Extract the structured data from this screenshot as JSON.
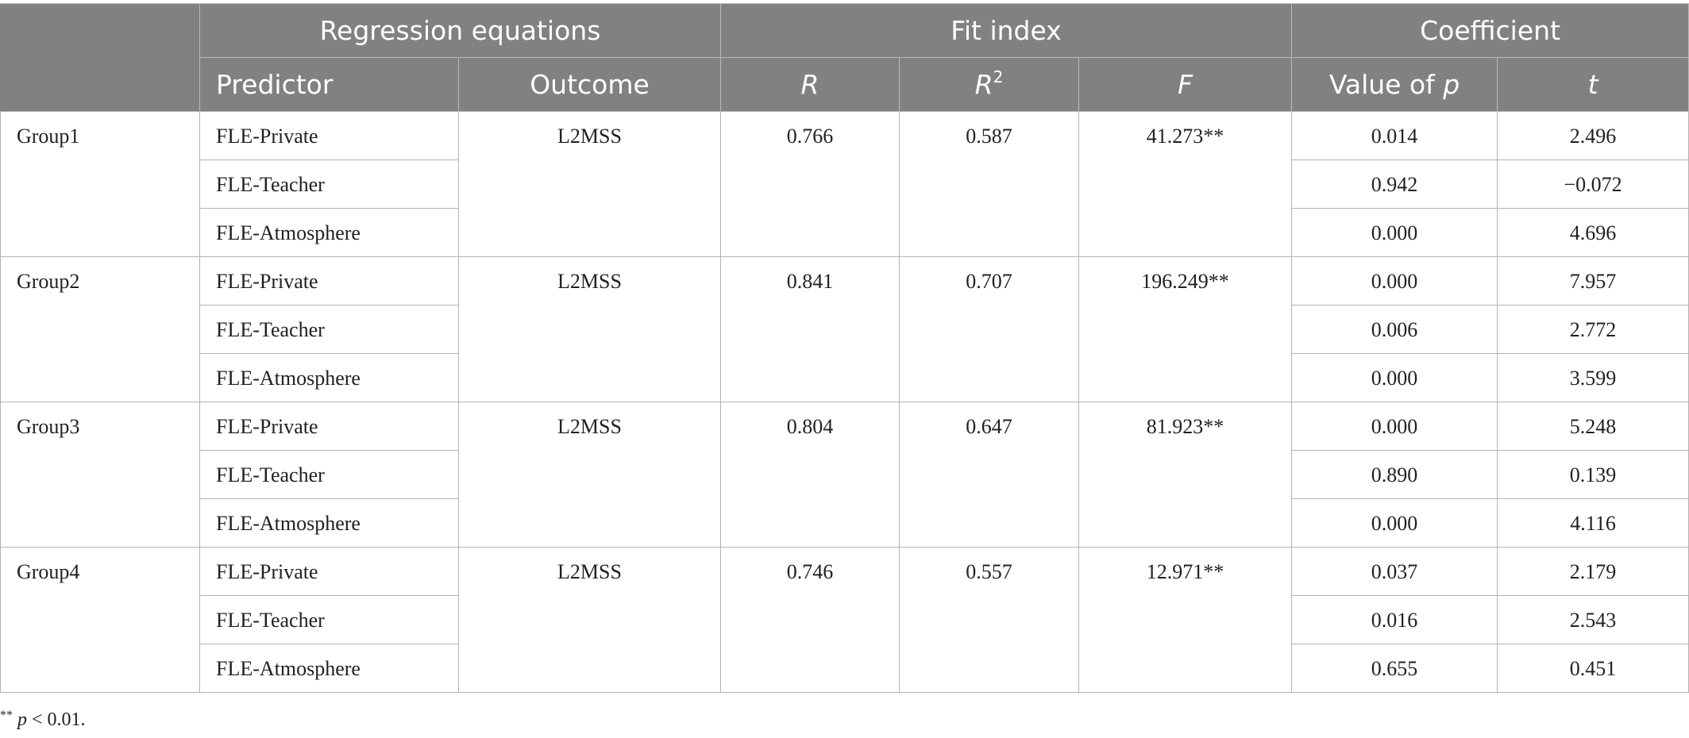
{
  "header": {
    "group_row": {
      "regression_equations": "Regression equations",
      "fit_index": "Fit index",
      "coefficient": "Coefficient"
    },
    "columns": {
      "predictor": "Predictor",
      "outcome": "Outcome",
      "r": "R",
      "r2_base": "R",
      "r2_sup": "2",
      "f": "F",
      "value_of_p_text": "Value of ",
      "value_of_p_var": "p",
      "t": "t"
    }
  },
  "groups": [
    {
      "name": "Group1",
      "outcome": "L2MSS",
      "r": "0.766",
      "r2": "0.587",
      "f": "41.273**",
      "rows": [
        {
          "predictor": "FLE-Private",
          "p": "0.014",
          "t": "2.496"
        },
        {
          "predictor": "FLE-Teacher",
          "p": "0.942",
          "t": "−0.072"
        },
        {
          "predictor": "FLE-Atmosphere",
          "p": "0.000",
          "t": "4.696"
        }
      ]
    },
    {
      "name": "Group2",
      "outcome": "L2MSS",
      "r": "0.841",
      "r2": "0.707",
      "f": "196.249**",
      "rows": [
        {
          "predictor": "FLE-Private",
          "p": "0.000",
          "t": "7.957"
        },
        {
          "predictor": "FLE-Teacher",
          "p": "0.006",
          "t": "2.772"
        },
        {
          "predictor": "FLE-Atmosphere",
          "p": "0.000",
          "t": "3.599"
        }
      ]
    },
    {
      "name": "Group3",
      "outcome": "L2MSS",
      "r": "0.804",
      "r2": "0.647",
      "f": "81.923**",
      "rows": [
        {
          "predictor": "FLE-Private",
          "p": "0.000",
          "t": "5.248"
        },
        {
          "predictor": "FLE-Teacher",
          "p": "0.890",
          "t": "0.139"
        },
        {
          "predictor": "FLE-Atmosphere",
          "p": "0.000",
          "t": "4.116"
        }
      ]
    },
    {
      "name": "Group4",
      "outcome": "L2MSS",
      "r": "0.746",
      "r2": "0.557",
      "f": "12.971**",
      "rows": [
        {
          "predictor": "FLE-Private",
          "p": "0.037",
          "t": "2.179"
        },
        {
          "predictor": "FLE-Teacher",
          "p": "0.016",
          "t": "2.543"
        },
        {
          "predictor": "FLE-Atmosphere",
          "p": "0.655",
          "t": "0.451"
        }
      ]
    }
  ],
  "footnote": {
    "stars": "**",
    "var": "p",
    "text": " < 0.01."
  }
}
